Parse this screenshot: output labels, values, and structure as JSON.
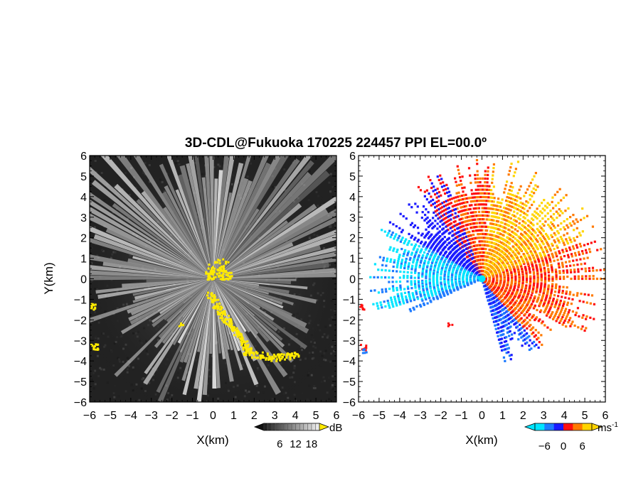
{
  "chart_data": [
    {
      "type": "heatmap",
      "title": "3D-CDL@Fukuoka 170225 224457 PPI EL=00.0º",
      "xlabel": "X(km)",
      "ylabel": "Y(km)",
      "xlim": [
        -6,
        6
      ],
      "ylim": [
        -6,
        6
      ],
      "x_ticks": [
        "-6",
        "-5",
        "-4",
        "-3",
        "-2",
        "-1",
        "0",
        "1",
        "2",
        "3",
        "4",
        "5",
        "6"
      ],
      "y_ticks": [
        "6",
        "5",
        "4",
        "3",
        "2",
        "1",
        "0",
        "-1",
        "-2",
        "-3",
        "-4",
        "-5",
        "-6"
      ],
      "colorbar": {
        "unit": "dB",
        "ticks": [
          "6",
          "12",
          "18"
        ],
        "range": [
          0,
          21
        ]
      },
      "palette": [
        "#1a1a1a",
        "#ffffff"
      ],
      "highlight_color": "#ffea00"
    },
    {
      "type": "heatmap",
      "xlabel": "X(km)",
      "xlim": [
        -6,
        6
      ],
      "ylim": [
        -6,
        6
      ],
      "x_ticks": [
        "-6",
        "-5",
        "-4",
        "-3",
        "-2",
        "-1",
        "0",
        "1",
        "2",
        "3",
        "4",
        "5",
        "6"
      ],
      "y_ticks": [
        "6",
        "5",
        "4",
        "3",
        "2",
        "1",
        "0",
        "-1",
        "-2",
        "-3",
        "-4",
        "-5",
        "-6"
      ],
      "colorbar": {
        "unit": "ms",
        "unit_exponent": "-1",
        "ticks": [
          "-6",
          "0",
          "6"
        ],
        "range": [
          -9,
          9
        ]
      },
      "palette": [
        "#00e5ff",
        "#1e7bff",
        "#1a1aff",
        "#ff1010",
        "#ff7a00",
        "#ffd400"
      ]
    }
  ]
}
